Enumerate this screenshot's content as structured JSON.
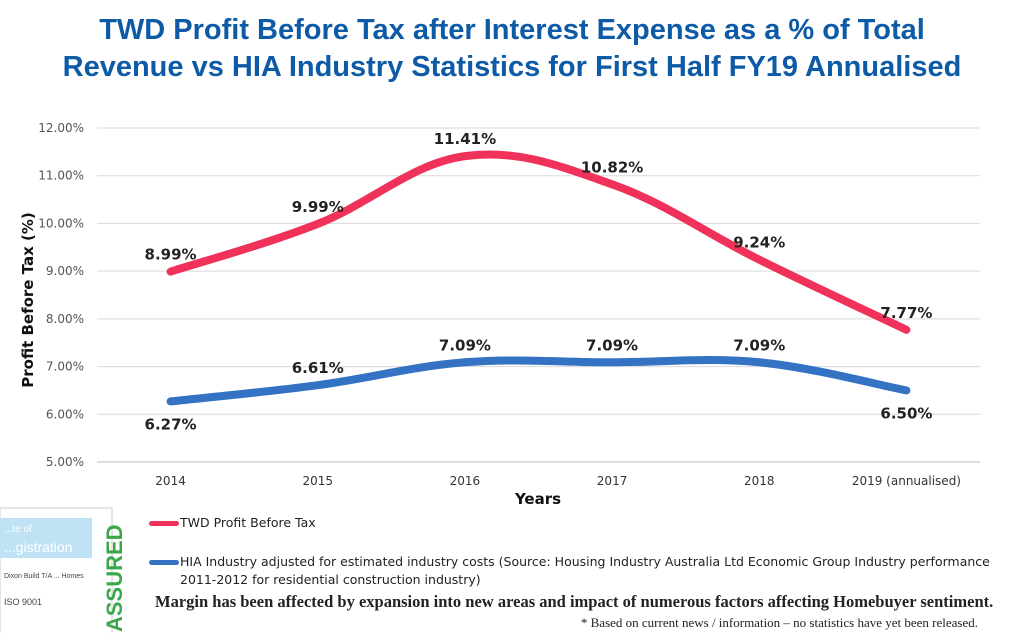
{
  "title_line1": "TWD Profit Before Tax after Interest Expense as a % of Total",
  "title_line2": "Revenue vs HIA Industry Statistics for First Half FY19 Annualised",
  "chart_data": {
    "type": "line",
    "categories": [
      "2014",
      "2015",
      "2016",
      "2017",
      "2018",
      "2019 (annualised)"
    ],
    "series": [
      {
        "name": "TWD Profit Before Tax",
        "values": [
          8.99,
          9.99,
          11.41,
          10.82,
          9.24,
          7.77
        ],
        "labels": [
          "8.99%",
          "9.99%",
          "11.41%",
          "10.82%",
          "9.24%",
          "7.77%"
        ],
        "color": "#f0325a"
      },
      {
        "name": "HIA Industry adjusted for estimated industry costs (Source: Housing Industry Australia Ltd Economic Group Industry performance 2011-2012 for residential construction industry)",
        "values": [
          6.27,
          6.61,
          7.09,
          7.09,
          7.09,
          6.5
        ],
        "labels": [
          "6.27%",
          "6.61%",
          "7.09%",
          "7.09%",
          "7.09%",
          "6.50%"
        ],
        "color": "#3472c4"
      }
    ],
    "xlabel": "Years",
    "ylabel": "Profit Before Tax (%)",
    "ylim": [
      5,
      12
    ],
    "yticks": [
      "5.00%",
      "6.00%",
      "7.00%",
      "8.00%",
      "9.00%",
      "10.00%",
      "11.00%",
      "12.00%"
    ],
    "grid": true,
    "legend": "bottom"
  },
  "note": "Margin has been affected by expansion into new areas and impact of numerous factors affecting Homebuyer sentiment.",
  "footnote": "* Based on current news / information – no statistics have yet been released.",
  "certificate_logo_text": [
    "...te of",
    "...gistration",
    "Dixon Build T/A ... Homes",
    "ISO 9001",
    "ASSURED"
  ]
}
